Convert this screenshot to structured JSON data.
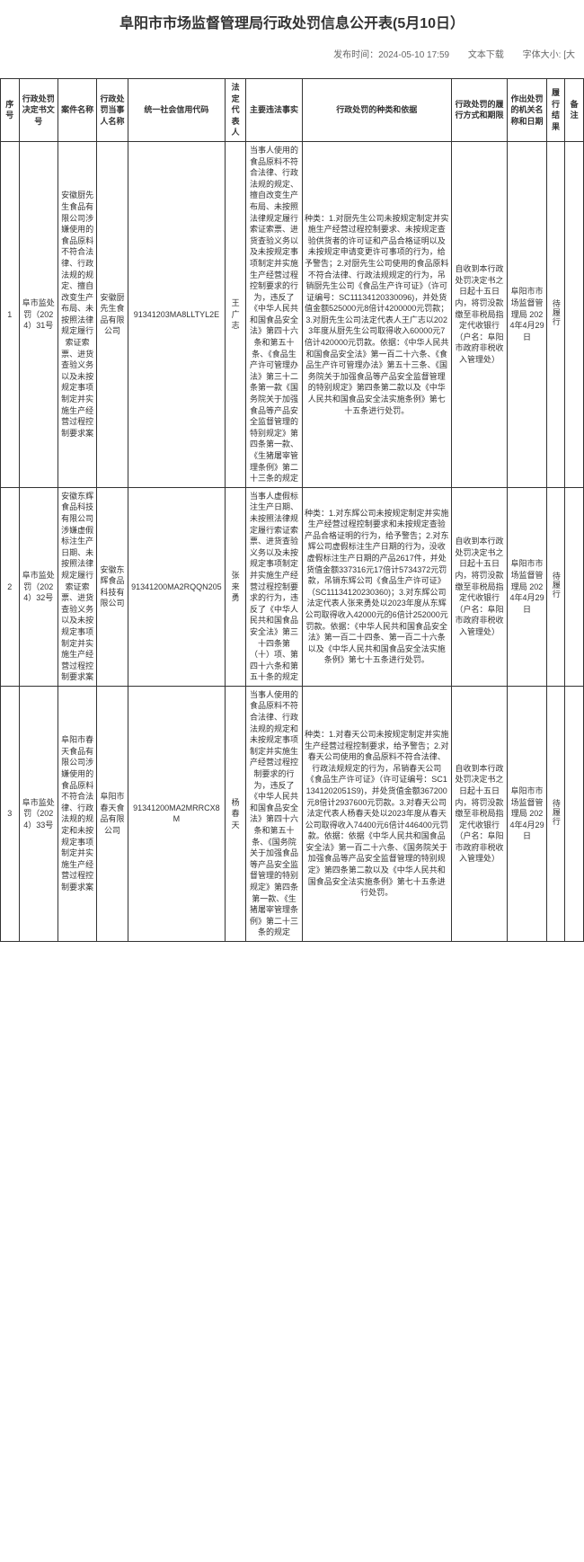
{
  "page": {
    "title": "阜阳市市场监督管理局行政处罚信息公开表(5月10日）",
    "publish_label": "发布时间：",
    "publish_time": "2024-05-10 17:59",
    "download_label": "文本下载",
    "fontsize_label": "字体大小: [大"
  },
  "table": {
    "headers": {
      "seq": "序号",
      "doc": "行政处罚决定书文号",
      "case": "案件名称",
      "party": "行政处罚当事人名称",
      "code": "统一社会信用代码",
      "legal": "法定代表人",
      "facts": "主要违法事实",
      "basis": "行政处罚的种类和依据",
      "method": "行政处罚的履行方式和期限",
      "org": "作出处罚的机关名称和日期",
      "result": "履行结果",
      "note": "备注"
    },
    "rows": [
      {
        "seq": "1",
        "doc": "阜市监处罚（2024）31号",
        "case": "安徽厨先生食品有限公司涉嫌使用的食品原料不符合法律、行政法规的规定、擅自改变生产布局、未按照法律规定履行索证索票、进货查验义务以及未按规定事项制定并实施生产经营过程控制要求案",
        "party": "安徽厨先生食品有限公司",
        "code": "91341203MA8LLTYL2E",
        "legal": "王广志",
        "facts": "当事人使用的食品原料不符合法律、行政法规的规定、擅自改变生产布局、未按照法律规定履行索证索票、进货查验义务以及未按规定事项制定并实施生产经营过程控制要求的行为，违反了《中华人民共和国食品安全法》第四十六条和第五十条、《食品生产许可管理办法》第三十二条第一款《国务院关于加强食品等产品安全监督管理的特别规定》第四条第一款、《生猪屠宰管理条例》第二十三条的规定",
        "basis": "种类：1.对厨先生公司未按规定制定并实施生产经营过程控制要求、未按规定查验供货者的许可证和产品合格证明以及未按规定申请变更许可事项的行为，给予警告；2.对厨先生公司使用的食品原料不符合法律、行政法规规定的行为，吊销厨先生公司《食品生产许可证》（许可证编号：SC11134120330096)，并处货值金额525000元8倍计4200000元罚款；3.对厨先生公司法定代表人王广志以2023年度从厨先生公司取得收入60000元7倍计420000元罚款。依据：《中华人民共和国食品安全法》第一百二十六条、《食品生产许可管理办法》第五十三条、《国务院关于加强食品等产品安全监督管理的特别规定》第四条第二款以及《中华人民共和国食品安全法实施条例》第七十五条进行处罚。",
        "method": "自收到本行政处罚决定书之日起十五日内，将罚没款缴至非税局指定代收银行（户名：阜阳市政府非税收入管理处）",
        "org": "阜阳市市场监督管理局 2024年4月29日",
        "result": "待履行",
        "note": ""
      },
      {
        "seq": "2",
        "doc": "阜市监处罚（2024）32号",
        "case": "安徽东辉食品科技有限公司涉嫌虚假标注生产日期、未按照法律规定履行索证索票、进货查验义务以及未按规定事项制定并实施生产经营过程控制要求案",
        "party": "安徽东辉食品科技有限公司",
        "code": "91341200MA2RQQN205",
        "legal": "张来勇",
        "facts": "当事人虚假标注生产日期、未按照法律规定履行索证索票、进货查验义务以及未按规定事项制定并实施生产经营过程控制要求的行为，违反了《中华人民共和国食品安全法》第三十四条第（十）项、第四十六条和第五十条的规定",
        "basis": "种类：1.对东辉公司未按规定制定并实施生产经营过程控制要求和未按规定查验产品合格证明的行为，给予警告；2.对东辉公司虚假标注生产日期的行为，没收虚假标注生产日期的产品2617件，并处货值金额337316元17倍计5734372元罚款，吊销东辉公司《食品生产许可证》（SC11134120230360)；3.对东辉公司法定代表人张来勇处以2023年度从东辉公司取得收入42000元的6倍计252000元罚款。依据：《中华人民共和国食品安全法》第一百二十四条、第一百二十六条以及《中华人民共和国食品安全法实施条例》第七十五条进行处罚。",
        "method": "自收到本行政处罚决定书之日起十五日内，将罚没款缴至非税局指定代收银行（户名：阜阳市政府非税收入管理处）",
        "org": "阜阳市市场监督管理局 2024年4月29日",
        "result": "待履行",
        "note": ""
      },
      {
        "seq": "3",
        "doc": "阜市监处罚（2024）33号",
        "case": "阜阳市春天食品有限公司涉嫌使用的食品原料不符合法律、行政法规的规定和未按规定事项制定并实施生产经营过程控制要求案",
        "party": "阜阳市春天食品有限公司",
        "code": "91341200MA2MRRCX8M",
        "legal": "杨春天",
        "facts": "当事人使用的食品原料不符合法律、行政法规的规定和未按规定事项制定并实施生产经营过程控制要求的行为，违反了《中华人民共和国食品安全法》第四十六条和第五十条、《国务院关于加强食品等产品安全监督管理的特别规定》第四条第一款、《生猪屠宰管理条例》第二十三条的规定",
        "basis": "种类：1.对春天公司未按规定制定并实施生产经营过程控制要求，给予警告；2.对春天公司使用的食品原料不符合法律、行政法规规定的行为，吊销春天公司《食品生产许可证》（许可证编号：SC11341202051S9)，并处货值金额367200元8倍计2937600元罚款。3.对春天公司法定代表人杨春天处以2023年度从春天公司取得收入74400元6倍计446400元罚款。依据：依据《中华人民共和国食品安全法》第一百二十六条、《国务院关于加强食品等产品安全监督管理的特别规定》第四条第二款以及《中华人民共和国食品安全法实施条例》第七十五条进行处罚。",
        "method": "自收到本行政处罚决定书之日起十五日内，将罚没款缴至非税局指定代收银行（户名：阜阳市政府非税收入管理处）",
        "org": "阜阳市市场监督管理局 2024年4月29日",
        "result": "待履行",
        "note": ""
      }
    ]
  }
}
